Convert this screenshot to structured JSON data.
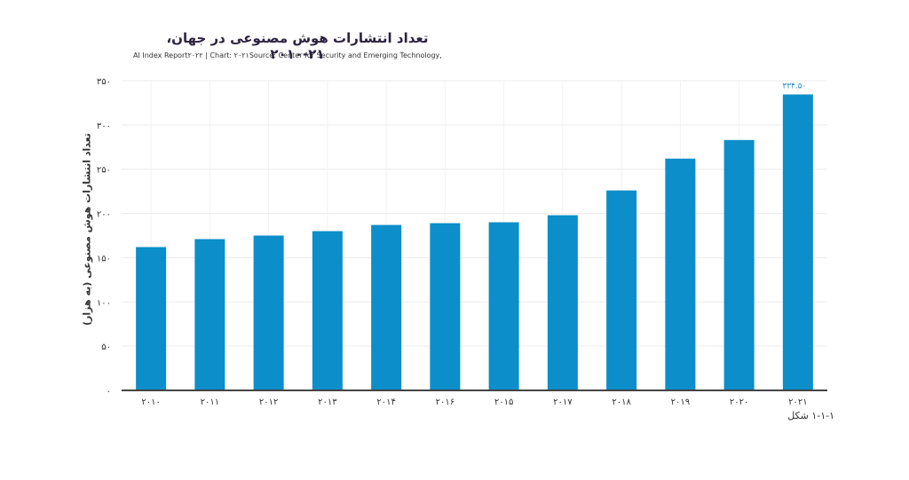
{
  "chart_data": {
    "type": "bar",
    "title": "تعداد انتشارات هوش مصنوعی در جهان، ۲۱-۲۰۱۰",
    "subtitle": "AI Index Report۲۰۲۲ | Chart: ۲۰۲۱Source: Center for Security and Emerging Technology,",
    "ylabel": "تعداد انتشارات هوش مصنوعی (به هزار)",
    "xlabel": "",
    "figure_caption": "۱-۱-۱ شکل",
    "categories": [
      "۲۰۱۰",
      "۲۰۱۱",
      "۲۰۱۲",
      "۲۰۱۳",
      "۲۰۱۴",
      "۲۰۱۶",
      "۲۰۱۵",
      "۲۰۱۷",
      "۲۰۱۸",
      "۲۰۱۹",
      "۲۰۲۰",
      "۲۰۲۱"
    ],
    "values": [
      162,
      171,
      175,
      180,
      187,
      189,
      190,
      198,
      226,
      262,
      283,
      334.5
    ],
    "data_labels": [
      "",
      "",
      "",
      "",
      "",
      "",
      "",
      "",
      "",
      "",
      "",
      "۳۳۴.۵۰"
    ],
    "yticks": [
      "۰",
      "۵۰",
      "۱۰۰",
      "۱۵۰",
      "۲۰۰",
      "۲۵۰",
      "۳۰۰",
      "۳۵۰"
    ],
    "ytick_values": [
      0,
      50,
      100,
      150,
      200,
      250,
      300,
      350
    ],
    "ylim": [
      0,
      350
    ],
    "grid": true,
    "bar_color": "#0b8ec9"
  }
}
